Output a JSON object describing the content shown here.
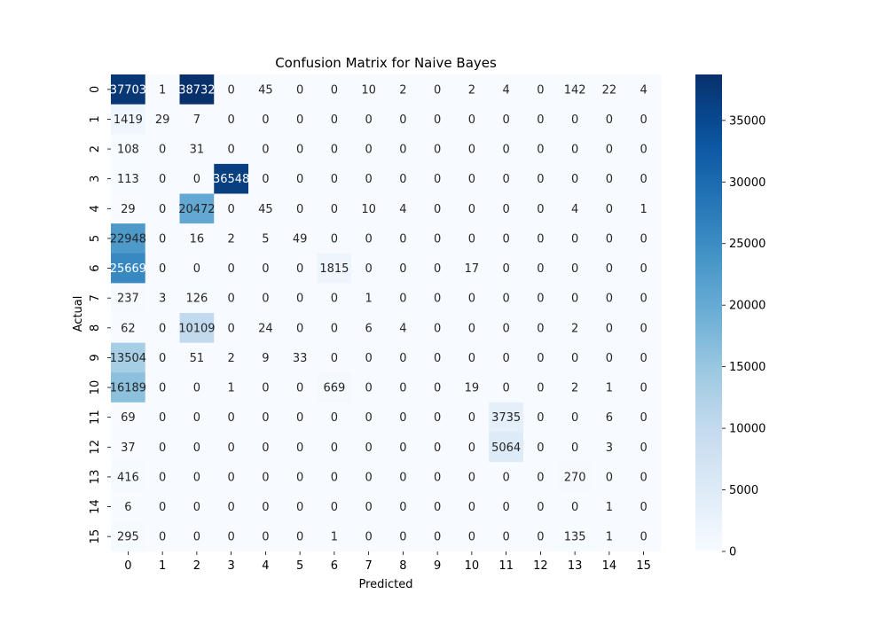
{
  "chart_data": {
    "type": "heatmap",
    "title": "Confusion Matrix for Naive Bayes",
    "xlabel": "Predicted",
    "ylabel": "Actual",
    "x_categories": [
      "0",
      "1",
      "2",
      "3",
      "4",
      "5",
      "6",
      "7",
      "8",
      "9",
      "10",
      "11",
      "12",
      "13",
      "14",
      "15"
    ],
    "y_categories": [
      "0",
      "1",
      "2",
      "3",
      "4",
      "5",
      "6",
      "7",
      "8",
      "9",
      "10",
      "11",
      "12",
      "13",
      "14",
      "15"
    ],
    "values": [
      [
        37703,
        1,
        38732,
        0,
        45,
        0,
        0,
        10,
        2,
        0,
        2,
        4,
        0,
        142,
        22,
        4
      ],
      [
        1419,
        29,
        7,
        0,
        0,
        0,
        0,
        0,
        0,
        0,
        0,
        0,
        0,
        0,
        0,
        0
      ],
      [
        108,
        0,
        31,
        0,
        0,
        0,
        0,
        0,
        0,
        0,
        0,
        0,
        0,
        0,
        0,
        0
      ],
      [
        113,
        0,
        0,
        36548,
        0,
        0,
        0,
        0,
        0,
        0,
        0,
        0,
        0,
        0,
        0,
        0
      ],
      [
        29,
        0,
        20472,
        0,
        45,
        0,
        0,
        10,
        4,
        0,
        0,
        0,
        0,
        4,
        0,
        1
      ],
      [
        22948,
        0,
        16,
        2,
        5,
        49,
        0,
        0,
        0,
        0,
        0,
        0,
        0,
        0,
        0,
        0
      ],
      [
        25669,
        0,
        0,
        0,
        0,
        0,
        1815,
        0,
        0,
        0,
        17,
        0,
        0,
        0,
        0,
        0
      ],
      [
        237,
        3,
        126,
        0,
        0,
        0,
        0,
        1,
        0,
        0,
        0,
        0,
        0,
        0,
        0,
        0
      ],
      [
        62,
        0,
        10109,
        0,
        24,
        0,
        0,
        6,
        4,
        0,
        0,
        0,
        0,
        2,
        0,
        0
      ],
      [
        13504,
        0,
        51,
        2,
        9,
        33,
        0,
        0,
        0,
        0,
        0,
        0,
        0,
        0,
        0,
        0
      ],
      [
        16189,
        0,
        0,
        1,
        0,
        0,
        669,
        0,
        0,
        0,
        19,
        0,
        0,
        2,
        1,
        0
      ],
      [
        69,
        0,
        0,
        0,
        0,
        0,
        0,
        0,
        0,
        0,
        0,
        3735,
        0,
        0,
        6,
        0
      ],
      [
        37,
        0,
        0,
        0,
        0,
        0,
        0,
        0,
        0,
        0,
        0,
        5064,
        0,
        0,
        3,
        0
      ],
      [
        416,
        0,
        0,
        0,
        0,
        0,
        0,
        0,
        0,
        0,
        0,
        0,
        0,
        270,
        0,
        0
      ],
      [
        6,
        0,
        0,
        0,
        0,
        0,
        0,
        0,
        0,
        0,
        0,
        0,
        0,
        0,
        1,
        0
      ],
      [
        295,
        0,
        0,
        0,
        0,
        0,
        1,
        0,
        0,
        0,
        0,
        0,
        0,
        135,
        1,
        0
      ]
    ],
    "colormap": "Blues",
    "color_range": [
      0,
      38732
    ],
    "colorbar_ticks": [
      0,
      5000,
      10000,
      15000,
      20000,
      25000,
      30000,
      35000
    ],
    "grid": false,
    "colors": {
      "low": "#f7fbff",
      "high": "#08306b"
    }
  }
}
